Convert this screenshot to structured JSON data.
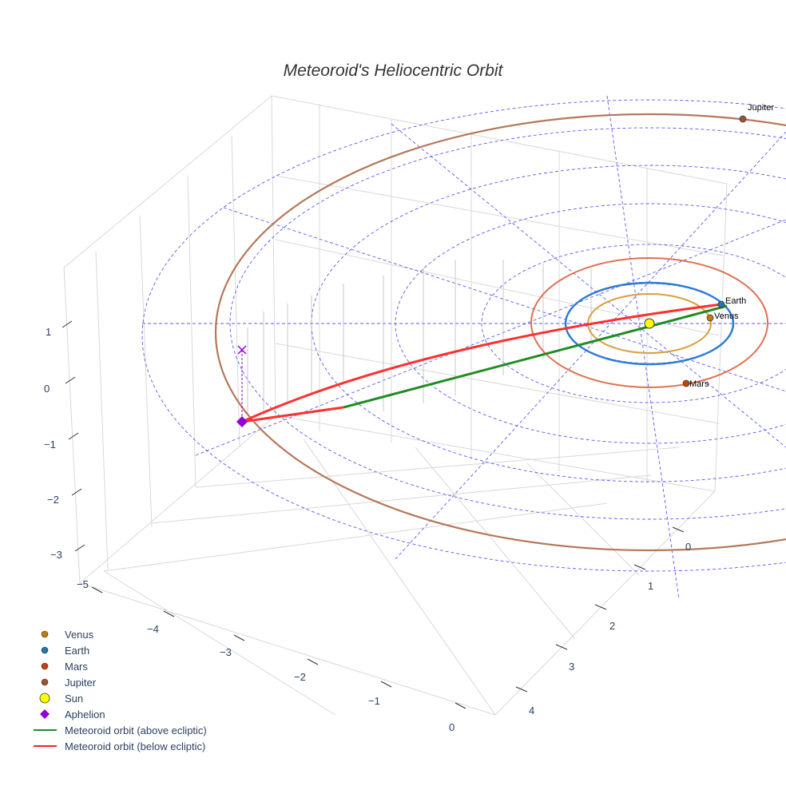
{
  "chart_data": {
    "type": "scatter3d",
    "title": "Meteoroid's Heliocentric Orbit",
    "axes": {
      "x": {
        "ticks": [
          "−5",
          "−4",
          "−3",
          "−2",
          "−1",
          "0"
        ],
        "range": [
          -5,
          0
        ]
      },
      "y": {
        "ticks": [
          "0",
          "1",
          "2",
          "3",
          "4"
        ],
        "range": [
          0,
          4
        ]
      },
      "z": {
        "ticks": [
          "1",
          "0",
          "−1",
          "−2",
          "−3"
        ],
        "range": [
          -3,
          1
        ]
      }
    },
    "planets": [
      {
        "name": "Venus",
        "orbit_au": 0.72,
        "color": "#d08a1a",
        "label": "Venus"
      },
      {
        "name": "Earth",
        "orbit_au": 1.0,
        "color": "#1f77b4",
        "label": "Earth"
      },
      {
        "name": "Mars",
        "orbit_au": 1.52,
        "color": "#d4461a",
        "label": "Mars"
      },
      {
        "name": "Jupiter",
        "orbit_au": 5.2,
        "color": "#a0522d",
        "label": "Jupiter"
      }
    ],
    "sun": {
      "name": "Sun",
      "color": "#ffff00"
    },
    "aphelion": {
      "name": "Aphelion",
      "color": "#9400d3"
    },
    "legend": {
      "placement": "bottom-left",
      "entries": [
        "Venus",
        "Earth",
        "Mars",
        "Jupiter",
        "Sun",
        "Aphelion",
        "Meteoroid orbit (above ecliptic)",
        "Meteoroid orbit (below ecliptic)"
      ]
    },
    "series_colors": {
      "above": "#228b22",
      "below": "#ff2020"
    }
  }
}
